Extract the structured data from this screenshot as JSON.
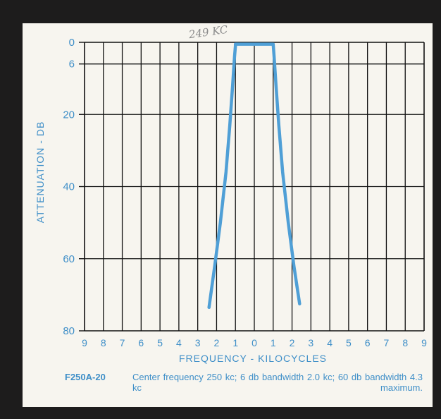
{
  "chart_data": {
    "type": "line",
    "title": "",
    "handwritten_note": "249 KC",
    "xlabel": "FREQUENCY - KILOCYCLES",
    "ylabel": "ATTENUATION - DB",
    "x_tick_labels": [
      "9",
      "8",
      "7",
      "6",
      "5",
      "4",
      "3",
      "2",
      "1",
      "0",
      "1",
      "2",
      "3",
      "4",
      "5",
      "6",
      "7",
      "8",
      "9"
    ],
    "y_ticks": [
      0,
      6,
      20,
      40,
      60,
      80
    ],
    "y_inverted": true,
    "xlim": [
      -9,
      9
    ],
    "ylim": [
      0,
      80
    ],
    "grid": true,
    "line_color": "#4f9fd6",
    "series": [
      {
        "name": "",
        "x": [
          -2.4,
          -2.1,
          -1.8,
          -1.5,
          -1.3,
          -1.15,
          -1.05,
          -1.0,
          -1.0,
          -0.5,
          0.0,
          0.5,
          1.0,
          1.05,
          1.15,
          1.3,
          1.5,
          1.8,
          2.1,
          2.4
        ],
        "y": [
          73.5,
          62,
          50,
          36,
          23,
          12,
          4,
          1,
          0.5,
          0.5,
          0.5,
          0.5,
          0.5,
          4,
          12,
          23,
          36,
          50,
          62,
          72.5
        ]
      }
    ]
  },
  "caption": {
    "model": "F250A-20",
    "text": "Center frequency 250 kc; 6 db bandwidth 2.0 kc; 60 db bandwidth 4.3 kc maximum."
  },
  "colors": {
    "accent": "#3f8fc8",
    "grid": "#111111",
    "background": "#f7f5ef",
    "border": "#1d1c1c"
  }
}
